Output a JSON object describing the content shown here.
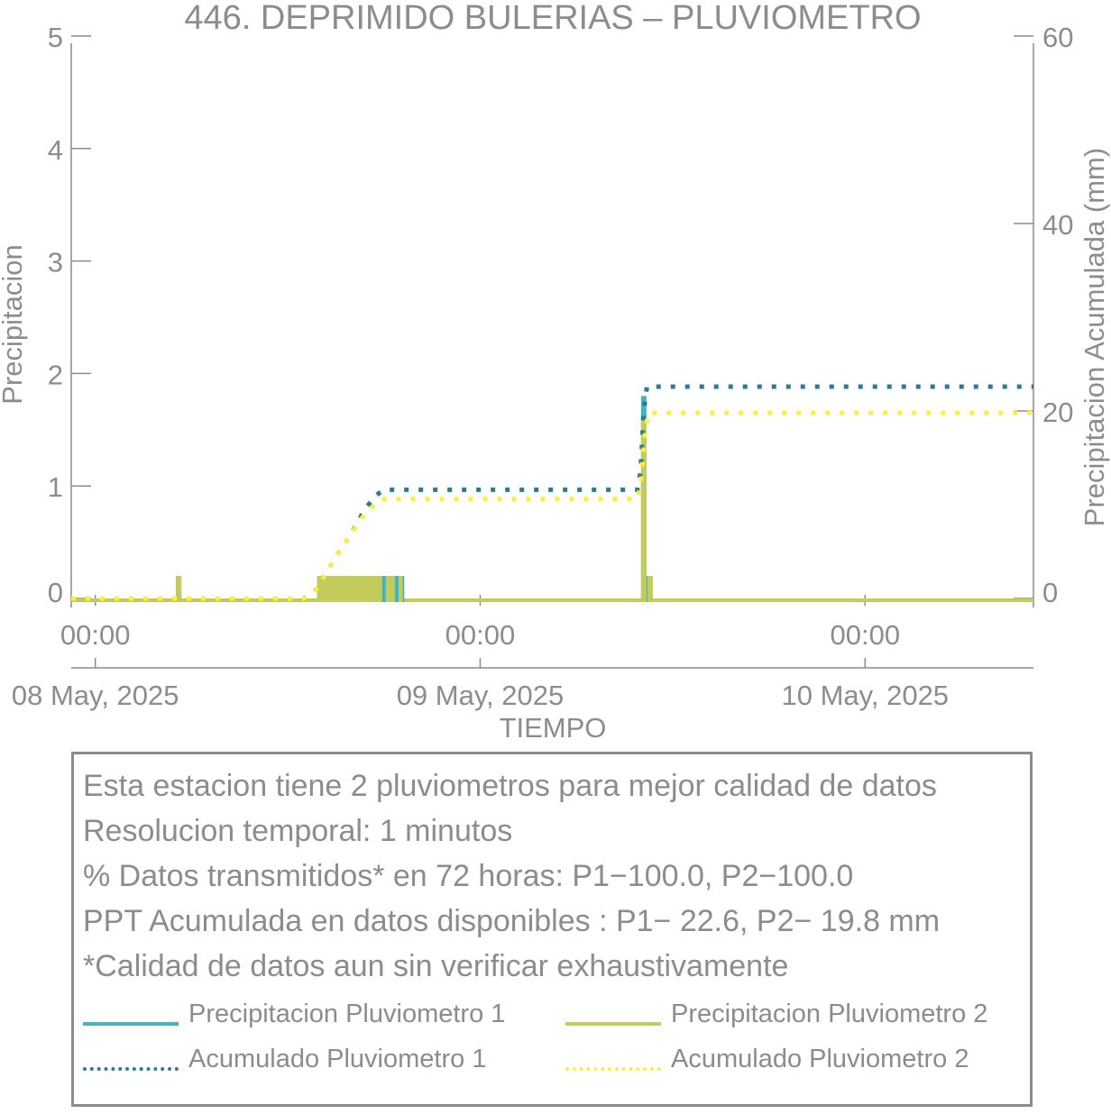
{
  "chart_data": {
    "type": "line",
    "title": "446. DEPRIMIDO BULERIAS – PLUVIOMETRO",
    "xlabel": "TIEMPO",
    "ylabel_left": "Precipitacion",
    "ylabel_right": "Precipitacion Acumulada (mm)",
    "ylim_left": [
      0,
      5
    ],
    "ylim_right": [
      0,
      60
    ],
    "yticks_left": [
      "0",
      "1",
      "2",
      "3",
      "4",
      "5"
    ],
    "yticks_right": [
      "0",
      "20",
      "40",
      "60"
    ],
    "x_tick_times": [
      "00:00",
      "00:00",
      "00:00"
    ],
    "x_tick_dates": [
      "08 May, 2025",
      "09 May, 2025",
      "10 May, 2025"
    ],
    "x_range_hours": [
      -1.5,
      58.5
    ],
    "x_unit": "hours from 08 May, 2025 00:00",
    "grid": false,
    "colors": {
      "p1": "#45b3c4",
      "p2": "#c3cb5a",
      "acc1": "#2c7c91",
      "acc2": "#ffef3c",
      "axis": "#8c8c8c"
    },
    "series": [
      {
        "name": "Precipitacion Pluviometro 1",
        "kind": "bars",
        "axis": "left",
        "points": [
          [
            5.2,
            0.2
          ],
          [
            14.0,
            0.2
          ],
          [
            14.5,
            0.2
          ],
          [
            15.0,
            0.2
          ],
          [
            15.5,
            0.2
          ],
          [
            16.0,
            0.2
          ],
          [
            16.5,
            0.2
          ],
          [
            17.0,
            0.2
          ],
          [
            17.5,
            0.2
          ],
          [
            17.9,
            0.2
          ],
          [
            18.4,
            0.2
          ],
          [
            18.8,
            0.2
          ],
          [
            19.1,
            0.2
          ],
          [
            34.2,
            1.8
          ],
          [
            34.5,
            0.2
          ]
        ]
      },
      {
        "name": "Precipitacion Pluviometro 2",
        "kind": "bars",
        "axis": "left",
        "points": [
          [
            5.2,
            0.2
          ],
          [
            14.0,
            0.2
          ],
          [
            14.5,
            0.2
          ],
          [
            15.0,
            0.2
          ],
          [
            15.5,
            0.2
          ],
          [
            16.0,
            0.2
          ],
          [
            16.5,
            0.2
          ],
          [
            17.0,
            0.2
          ],
          [
            17.5,
            0.2
          ],
          [
            18.0,
            0.2
          ],
          [
            19.0,
            0.2
          ],
          [
            34.2,
            1.6
          ],
          [
            34.6,
            0.2
          ]
        ]
      },
      {
        "name": "Acumulado Pluviometro 1",
        "kind": "dotted",
        "axis": "right",
        "points": [
          [
            -1.5,
            0
          ],
          [
            13.0,
            0
          ],
          [
            13.8,
            1.0
          ],
          [
            14.5,
            3.0
          ],
          [
            15.2,
            5.0
          ],
          [
            16.0,
            7.0
          ],
          [
            16.8,
            9.5
          ],
          [
            17.5,
            11.0
          ],
          [
            18.0,
            11.6
          ],
          [
            33.8,
            11.6
          ],
          [
            34.0,
            13.5
          ],
          [
            34.2,
            20.0
          ],
          [
            34.4,
            22.6
          ],
          [
            58.5,
            22.6
          ]
        ]
      },
      {
        "name": "Acumulado Pluviometro 2",
        "kind": "dotted",
        "axis": "right",
        "points": [
          [
            -1.5,
            0
          ],
          [
            13.0,
            0
          ],
          [
            13.8,
            1.0
          ],
          [
            14.5,
            3.0
          ],
          [
            15.2,
            5.0
          ],
          [
            16.0,
            7.0
          ],
          [
            16.8,
            9.0
          ],
          [
            17.8,
            10.6
          ],
          [
            18.8,
            10.6
          ],
          [
            33.8,
            10.6
          ],
          [
            34.0,
            12.0
          ],
          [
            34.3,
            18.0
          ],
          [
            34.5,
            19.8
          ],
          [
            58.5,
            19.8
          ]
        ]
      }
    ]
  },
  "info": {
    "lines": [
      "Esta estacion tiene 2 pluviometros para mejor calidad de datos",
      "Resolucion temporal: 1 minutos",
      "% Datos transmitidos* en 72 horas: P1−100.0, P2−100.0",
      "PPT Acumulada en datos disponibles : P1− 22.6, P2− 19.8 mm",
      "*Calidad de datos aun sin verificar exhaustivamente"
    ],
    "legend": [
      {
        "label": "Precipitacion Pluviometro 1",
        "color": "#45b3c4",
        "style": "solid"
      },
      {
        "label": "Precipitacion Pluviometro 2",
        "color": "#c3cb5a",
        "style": "solid"
      },
      {
        "label": "Acumulado Pluviometro 1",
        "color": "#2c7c91",
        "style": "dotted"
      },
      {
        "label": "Acumulado Pluviometro 2",
        "color": "#ffef3c",
        "style": "dotted"
      }
    ]
  }
}
